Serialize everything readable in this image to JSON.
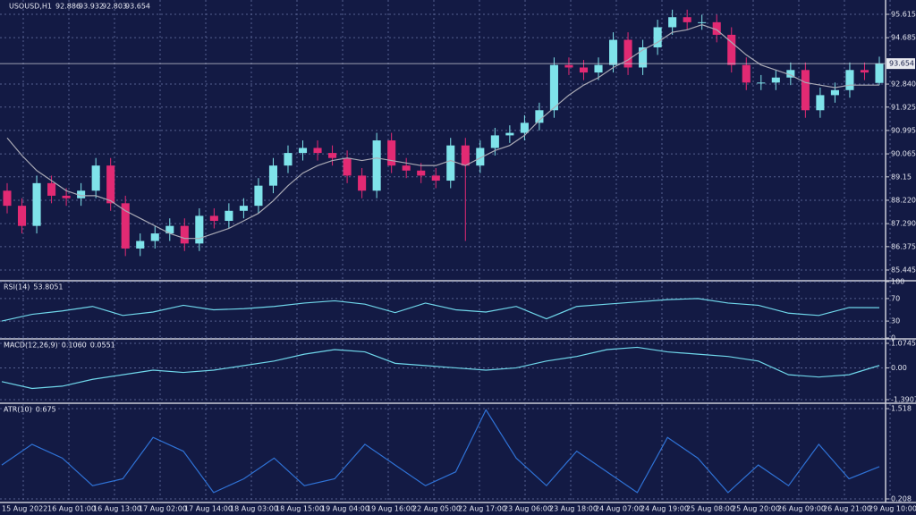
{
  "chart_data": [
    {
      "type": "candlestick",
      "title": "USOUSD,H1",
      "color_up": "#7fe3ea",
      "color_down": "#e22a73",
      "open": [
        88.6,
        88.0,
        87.2,
        88.9,
        88.4,
        88.3,
        88.6,
        89.6,
        88.1,
        86.3,
        86.6,
        86.9,
        87.2,
        86.5,
        87.6,
        87.4,
        87.8,
        88.0,
        88.8,
        89.6,
        90.1,
        90.3,
        90.1,
        89.9,
        89.2,
        88.6,
        90.6,
        89.6,
        89.4,
        89.2,
        89.0,
        90.4,
        89.6,
        90.3,
        90.8,
        90.9,
        91.3,
        91.8,
        93.6,
        93.5,
        93.3,
        93.6,
        94.6,
        93.5,
        94.3,
        95.1,
        95.5,
        95.3,
        95.3,
        94.8,
        93.6,
        92.9,
        92.9,
        93.1,
        93.4,
        91.8,
        92.4,
        92.6,
        93.4,
        92.886
      ],
      "high": [
        88.9,
        88.3,
        89.2,
        89.2,
        88.7,
        88.9,
        89.9,
        89.9,
        88.4,
        86.9,
        87.2,
        87.5,
        87.5,
        87.9,
        87.9,
        88.1,
        88.3,
        89.1,
        89.9,
        90.4,
        90.6,
        90.6,
        90.4,
        90.2,
        89.5,
        90.9,
        90.9,
        89.9,
        89.7,
        89.5,
        90.7,
        90.7,
        90.6,
        91.1,
        91.2,
        91.6,
        92.1,
        93.9,
        93.9,
        93.8,
        93.9,
        94.9,
        94.9,
        94.6,
        95.4,
        95.8,
        95.8,
        95.6,
        95.6,
        95.1,
        93.9,
        93.2,
        93.4,
        93.7,
        93.7,
        92.7,
        92.9,
        93.7,
        93.7,
        93.932
      ],
      "low": [
        87.7,
        86.9,
        86.9,
        88.1,
        88.0,
        88.0,
        88.3,
        87.8,
        86.0,
        86.0,
        86.3,
        86.6,
        86.2,
        86.2,
        87.1,
        87.1,
        87.5,
        87.7,
        88.5,
        89.3,
        89.8,
        89.8,
        89.6,
        88.9,
        88.3,
        88.3,
        89.3,
        89.1,
        88.9,
        88.7,
        88.7,
        86.6,
        89.3,
        90.0,
        90.5,
        90.6,
        91.0,
        91.5,
        93.2,
        93.0,
        93.0,
        93.3,
        93.2,
        93.2,
        94.0,
        94.8,
        95.0,
        95.0,
        94.5,
        93.3,
        92.6,
        92.6,
        92.6,
        92.8,
        91.5,
        91.5,
        92.1,
        92.3,
        93.0,
        92.803
      ],
      "close": [
        88.0,
        87.2,
        88.9,
        88.4,
        88.3,
        88.6,
        89.6,
        88.1,
        86.3,
        86.6,
        86.9,
        87.2,
        86.5,
        87.6,
        87.4,
        87.8,
        88.0,
        88.8,
        89.6,
        90.1,
        90.3,
        90.1,
        89.9,
        89.2,
        88.6,
        90.6,
        89.6,
        89.4,
        89.2,
        89.0,
        90.4,
        89.6,
        90.3,
        90.8,
        90.9,
        91.3,
        91.8,
        93.6,
        93.5,
        93.3,
        93.6,
        94.6,
        93.5,
        94.3,
        95.1,
        95.5,
        95.3,
        95.3,
        94.8,
        93.6,
        92.9,
        92.9,
        93.1,
        93.4,
        91.8,
        92.4,
        92.6,
        93.4,
        93.3,
        93.654
      ],
      "series": [
        {
          "color": "#a9a9b4",
          "values": [
            90.7,
            90.0,
            89.4,
            89.0,
            88.6,
            88.4,
            88.4,
            88.2,
            87.8,
            87.5,
            87.2,
            86.9,
            86.7,
            86.7,
            86.9,
            87.1,
            87.4,
            87.7,
            88.2,
            88.8,
            89.3,
            89.6,
            89.8,
            89.9,
            89.8,
            89.9,
            89.8,
            89.7,
            89.6,
            89.6,
            89.8,
            89.6,
            89.9,
            90.2,
            90.4,
            90.8,
            91.4,
            91.9,
            92.4,
            92.8,
            93.1,
            93.5,
            93.8,
            94.2,
            94.5,
            94.9,
            95.0,
            95.2,
            95.0,
            94.5,
            94.0,
            93.6,
            93.4,
            93.2,
            92.9,
            92.8,
            92.7,
            92.8,
            92.8,
            92.8
          ]
        }
      ],
      "ylim": [
        85.054,
        96.184
      ],
      "yticks": [
        95.615,
        94.685,
        {
          "value": 92.84,
          "label": "92.840"
        },
        91.925,
        90.995,
        90.065,
        89.15,
        {
          "value": 88.22,
          "label": "88.220"
        },
        {
          "value": 87.29,
          "label": "87.290"
        },
        86.375,
        85.445
      ],
      "xtick_labels": [
        "15 Aug 2022",
        "16 Aug 01:00",
        "16 Aug 13:00",
        "17 Aug 02:00",
        "17 Aug 14:00",
        "18 Aug 03:00",
        "18 Aug 15:00",
        "19 Aug 04:00",
        "19 Aug 16:00",
        "22 Aug 05:00",
        "22 Aug 17:00",
        "23 Aug 06:00",
        "23 Aug 18:00",
        "24 Aug 07:00",
        "24 Aug 19:00",
        "25 Aug 08:00",
        "25 Aug 20:00",
        "26 Aug 09:00",
        "26 Aug 21:00",
        "29 Aug 10:00"
      ],
      "grid": true
    },
    {
      "type": "line",
      "title": "RSI(14)",
      "color": "#6fd6ea",
      "values": [
        30,
        42,
        48,
        56,
        40,
        46,
        58,
        50,
        52,
        56,
        62,
        66,
        60,
        45,
        62,
        50,
        46,
        56,
        34,
        56,
        60,
        64,
        68,
        70,
        62,
        58,
        44,
        40,
        54,
        53.8051
      ],
      "readout": [
        53.8051
      ],
      "ylim": [
        0,
        100
      ],
      "yticks": [
        100,
        70,
        30,
        0
      ],
      "grid": true
    },
    {
      "type": "line",
      "title": "MACD(12,26,9)",
      "color": "#6fd6ea",
      "values": [
        -0.6,
        -0.9,
        -0.8,
        -0.5,
        -0.3,
        -0.1,
        -0.2,
        -0.1,
        0.1,
        0.3,
        0.6,
        0.8,
        0.7,
        0.2,
        0.1,
        0.0,
        -0.1,
        0.0,
        0.3,
        0.5,
        0.8,
        0.9,
        0.7,
        0.6,
        0.5,
        0.3,
        -0.3,
        -0.4,
        -0.3,
        0.106
      ],
      "readout": [
        {
          "value": 0.106,
          "label": "0.1060"
        },
        0.0551
      ],
      "ylim": [
        -1.508,
        1.231
      ],
      "yticks": [
        1.0745,
        {
          "value": 0,
          "label": "0.00"
        },
        -1.3907
      ],
      "grid": true
    },
    {
      "type": "line",
      "title": "ATR(10)",
      "color": "#2f72d6",
      "values": [
        0.7,
        1.0,
        0.8,
        0.4,
        0.5,
        1.1,
        0.9,
        0.3,
        0.5,
        0.8,
        0.4,
        0.5,
        1.0,
        0.7,
        0.4,
        0.6,
        1.5,
        0.8,
        0.4,
        0.9,
        0.6,
        0.3,
        1.1,
        0.8,
        0.3,
        0.7,
        0.4,
        1.0,
        0.5,
        0.675
      ],
      "readout": [
        0.675
      ],
      "ylim": [
        0.169,
        1.583
      ],
      "yticks": [
        1.518,
        0.208
      ],
      "grid": true
    }
  ]
}
